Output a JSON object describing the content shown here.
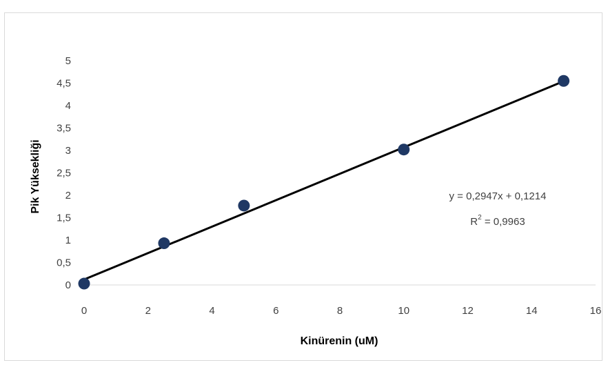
{
  "chart_data": {
    "type": "scatter",
    "xlabel": "Kinürenin (uM)",
    "ylabel": "Pik Yüksekliği",
    "xlim": [
      0,
      16
    ],
    "ylim": [
      0,
      5
    ],
    "xticks": [
      "0",
      "2",
      "4",
      "6",
      "8",
      "10",
      "12",
      "14",
      "16"
    ],
    "yticks": [
      "0",
      "0,5",
      "1",
      "1,5",
      "2",
      "2,5",
      "3",
      "3,5",
      "4",
      "4,5",
      "5"
    ],
    "x": [
      0,
      2.5,
      5,
      10,
      15
    ],
    "y": [
      0.03,
      0.93,
      1.77,
      3.02,
      4.55
    ],
    "trendline": {
      "slope": 0.2947,
      "intercept": 0.1214
    },
    "equation": "y = 0,2947x + 0,1214",
    "r2_prefix": "R",
    "r2_sup": "2",
    "r2_value": " = 0,9963",
    "grid": false,
    "legend": "none",
    "colors": {
      "marker": "#1f3864",
      "trendline": "#000000",
      "text": "#404040"
    }
  }
}
